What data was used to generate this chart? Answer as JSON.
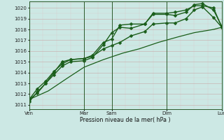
{
  "background_color": "#cce8e4",
  "grid_color_major": "#b8c8c0",
  "grid_color_minor": "#d8e8e4",
  "line_color": "#1a5e1a",
  "ylabel_values": [
    1011,
    1012,
    1013,
    1014,
    1015,
    1016,
    1017,
    1018,
    1019,
    1020
  ],
  "ylim": [
    1010.6,
    1020.6
  ],
  "xlabel": "Pression niveau de la mer( hPa )",
  "xtick_labels": [
    "Ven",
    "",
    "Mar",
    "Sam",
    "",
    "Dim",
    "",
    "Lun"
  ],
  "xtick_positions": [
    0,
    1,
    2,
    3,
    4,
    5,
    6,
    7
  ],
  "vline_positions": [
    0,
    2,
    3,
    5,
    7
  ],
  "x_total": 7,
  "series": [
    {
      "x": [
        0,
        0.3,
        0.6,
        0.9,
        1.2,
        1.5,
        2.0,
        2.3,
        2.7,
        3.0,
        3.3,
        3.7,
        4.2,
        4.5,
        5.0,
        5.3,
        5.7,
        6.0,
        6.3,
        6.7,
        7.0
      ],
      "y": [
        1011.3,
        1012.2,
        1013.0,
        1013.8,
        1014.6,
        1015.0,
        1015.1,
        1015.4,
        1016.6,
        1017.7,
        1018.2,
        1018.1,
        1018.5,
        1019.4,
        1019.4,
        1019.3,
        1019.6,
        1020.3,
        1020.4,
        1019.8,
        1018.3
      ],
      "marker": "D",
      "markersize": 2.5,
      "linewidth": 1.0
    },
    {
      "x": [
        0,
        0.3,
        0.6,
        0.9,
        1.2,
        1.5,
        2.0,
        2.3,
        2.7,
        3.0,
        3.3,
        3.7,
        4.2,
        4.5,
        5.0,
        5.3,
        5.7,
        6.0,
        6.3,
        6.7,
        7.0
      ],
      "y": [
        1011.5,
        1012.5,
        1013.2,
        1014.1,
        1014.8,
        1015.2,
        1015.3,
        1015.6,
        1016.8,
        1017.1,
        1018.4,
        1018.5,
        1018.5,
        1019.5,
        1019.5,
        1019.6,
        1019.8,
        1020.2,
        1020.2,
        1020.0,
        1018.2
      ],
      "marker": "D",
      "markersize": 2.5,
      "linewidth": 1.0
    },
    {
      "x": [
        0,
        0.3,
        0.6,
        0.9,
        1.2,
        1.5,
        2.0,
        2.3,
        2.7,
        3.0,
        3.3,
        3.7,
        4.2,
        4.5,
        5.0,
        5.3,
        5.7,
        6.0,
        6.3,
        6.7,
        7.0
      ],
      "y": [
        1011.5,
        1012.1,
        1013.0,
        1014.0,
        1015.0,
        1015.2,
        1015.3,
        1015.5,
        1016.2,
        1016.5,
        1016.8,
        1017.4,
        1017.8,
        1018.5,
        1018.6,
        1018.6,
        1019.0,
        1019.8,
        1020.1,
        1019.1,
        1018.2
      ],
      "marker": "D",
      "markersize": 2.5,
      "linewidth": 1.0
    },
    {
      "x": [
        0,
        0.7,
        1.4,
        2.0,
        2.7,
        3.4,
        4.0,
        4.7,
        5.4,
        6.0,
        6.7,
        7.0
      ],
      "y": [
        1011.5,
        1012.3,
        1013.5,
        1014.5,
        1015.2,
        1015.8,
        1016.2,
        1016.8,
        1017.3,
        1017.7,
        1018.0,
        1018.2
      ],
      "marker": null,
      "markersize": 0,
      "linewidth": 0.9
    }
  ]
}
